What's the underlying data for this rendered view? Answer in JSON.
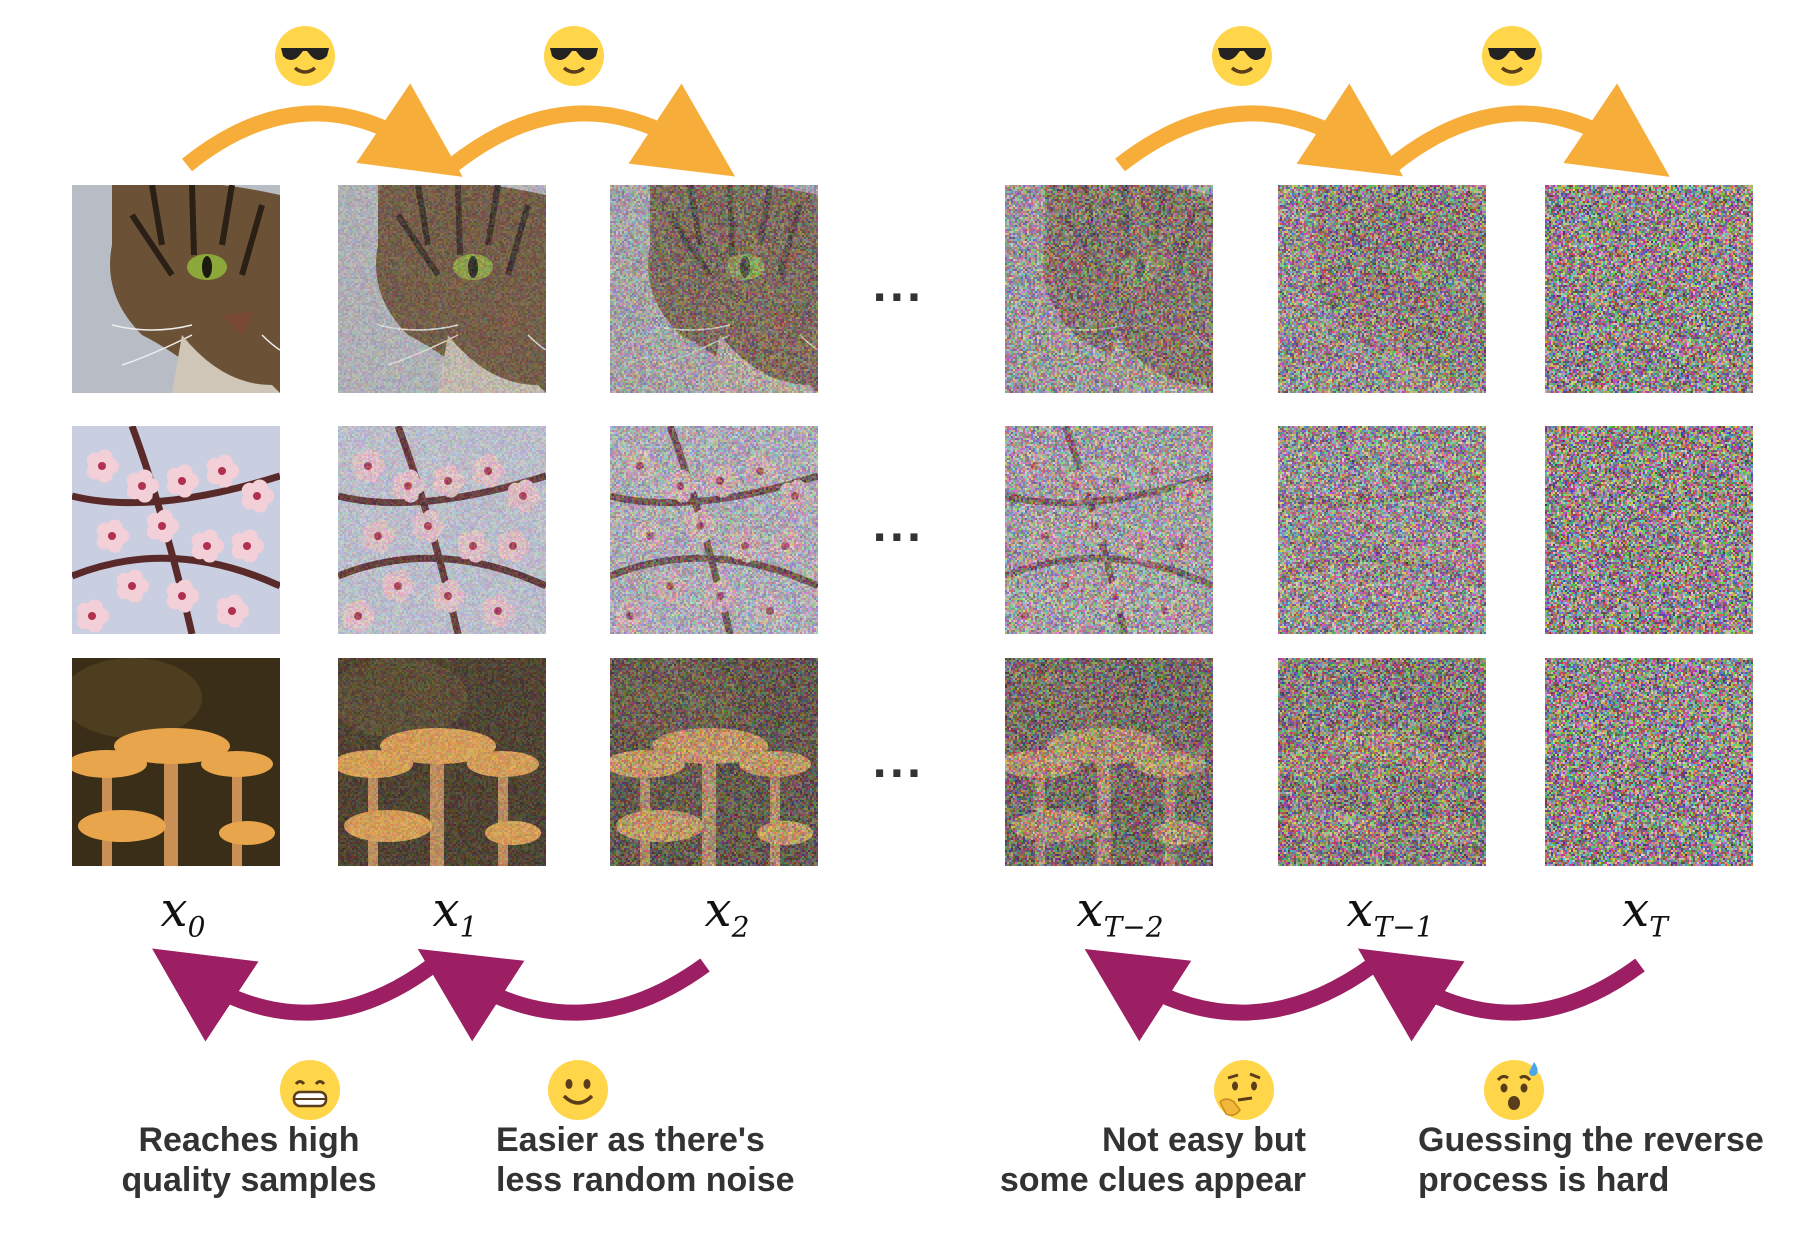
{
  "diagram": {
    "type": "diffusion-process",
    "forward_emoji": "smiling-face-with-sunglasses-icon",
    "colors": {
      "forward_arrow": "#f6ad3a",
      "reverse_arrow": "#9b1f62",
      "text": "#333333"
    },
    "ellipsis": "...",
    "rows": [
      "cat",
      "cherry-blossom",
      "mushroom"
    ],
    "steps": [
      {
        "var": "x",
        "sub": "0"
      },
      {
        "var": "x",
        "sub": "1"
      },
      {
        "var": "x",
        "sub": "2"
      },
      {
        "var": "x",
        "sub": "T−2"
      },
      {
        "var": "x",
        "sub": "T−1"
      },
      {
        "var": "x",
        "sub": "T"
      }
    ],
    "noise_levels": [
      0,
      0.25,
      0.5,
      0.7,
      0.88,
      1.0
    ],
    "captions": [
      {
        "emoji": "grinning-face-icon",
        "lines": [
          "Reaches high",
          "quality samples"
        ]
      },
      {
        "emoji": "smiling-face-icon",
        "lines": [
          "Easier as there's",
          "less random noise"
        ]
      },
      {
        "emoji": "thinking-face-icon",
        "lines": [
          "Not easy but",
          "some clues appear"
        ]
      },
      {
        "emoji": "anxious-face-with-sweat-icon",
        "lines": [
          "Guessing the reverse",
          "process is hard"
        ]
      }
    ]
  }
}
